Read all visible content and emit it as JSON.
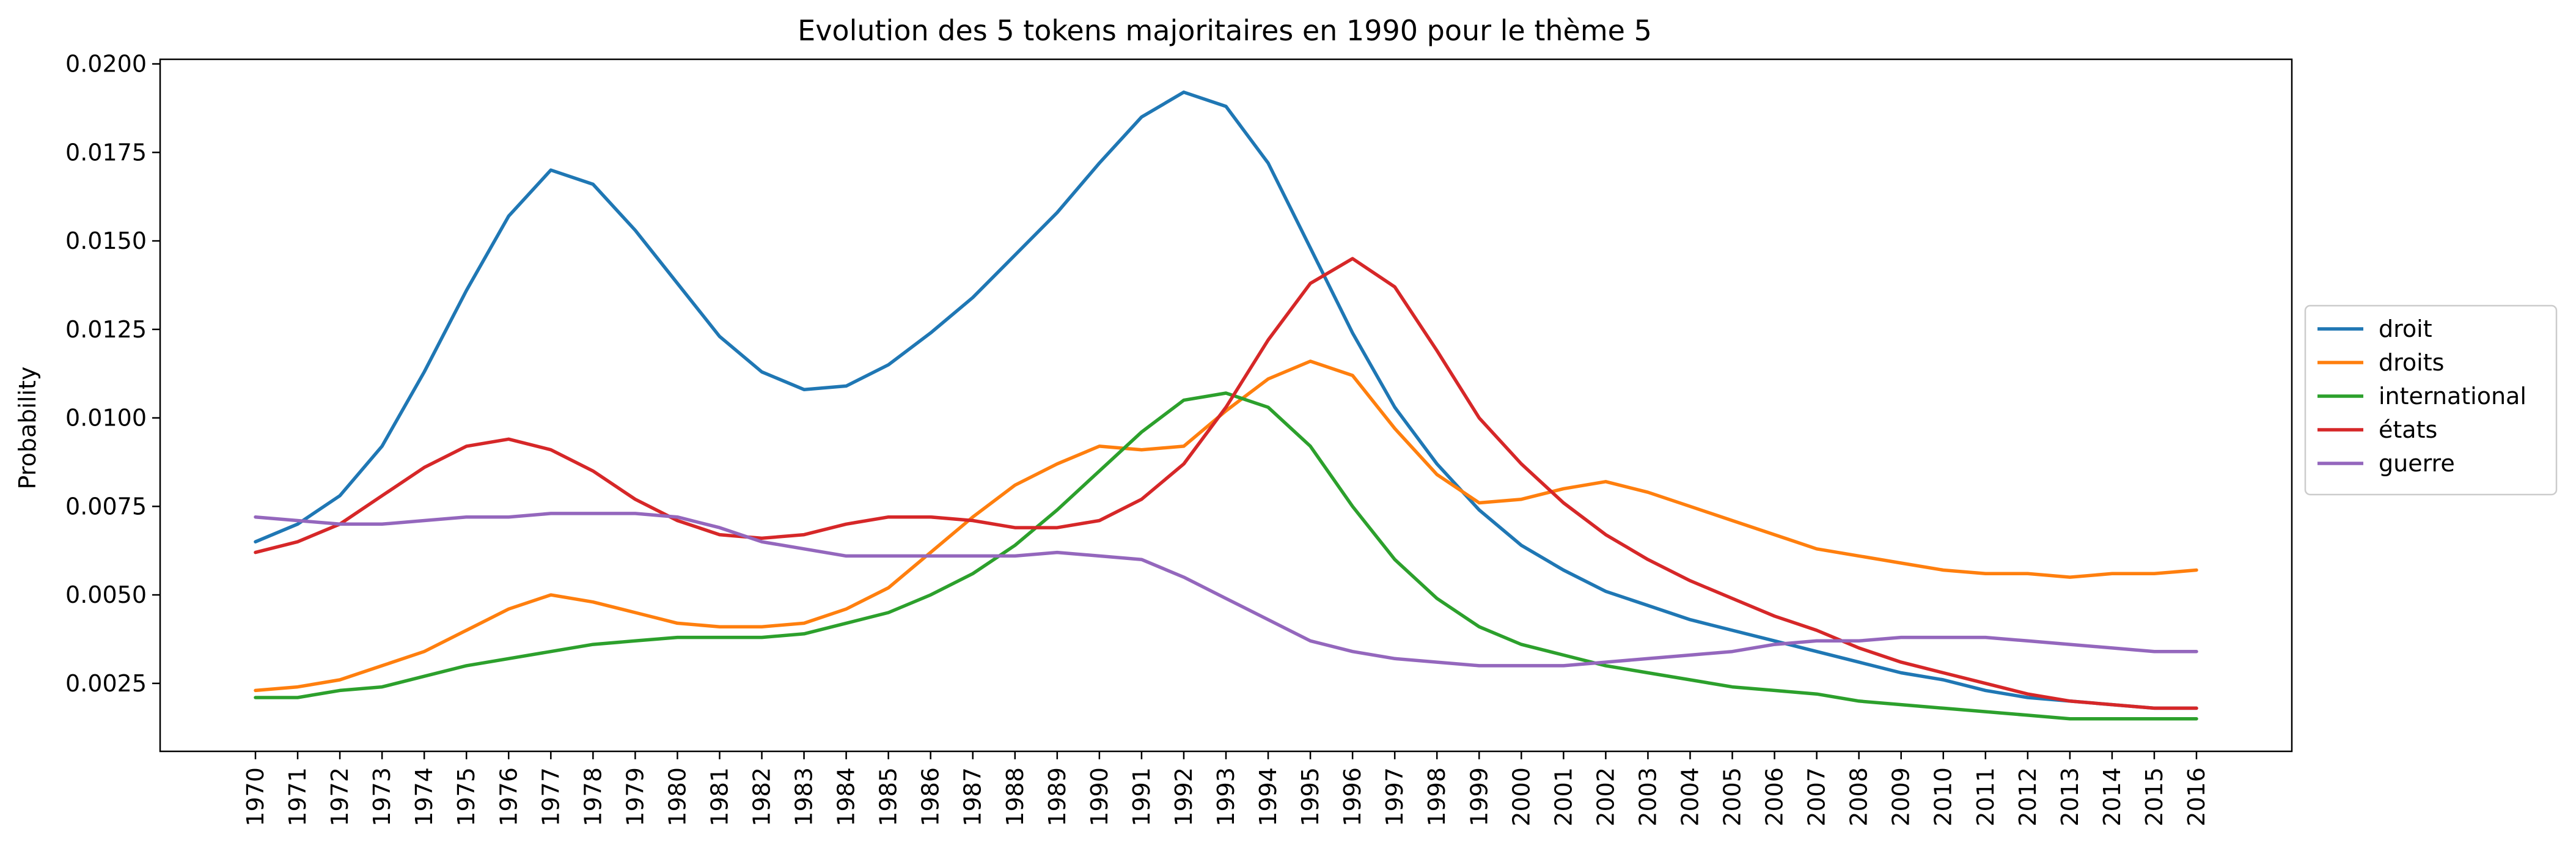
{
  "chart_data": {
    "type": "line",
    "title": "Evolution des 5 tokens majoritaires en 1990 pour le thème 5",
    "xlabel": "",
    "ylabel": "Probability",
    "x": [
      "1970",
      "1971",
      "1972",
      "1973",
      "1974",
      "1975",
      "1976",
      "1977",
      "1978",
      "1979",
      "1980",
      "1981",
      "1982",
      "1983",
      "1984",
      "1985",
      "1986",
      "1987",
      "1988",
      "1989",
      "1990",
      "1991",
      "1992",
      "1993",
      "1994",
      "1995",
      "1996",
      "1997",
      "1998",
      "1999",
      "2000",
      "2001",
      "2002",
      "2003",
      "2004",
      "2005",
      "2006",
      "2007",
      "2008",
      "2009",
      "2010",
      "2011",
      "2012",
      "2013",
      "2014",
      "2015",
      "2016"
    ],
    "yticks": [
      "0.0025",
      "0.0050",
      "0.0075",
      "0.0100",
      "0.0125",
      "0.0150",
      "0.0175",
      "0.0200"
    ],
    "ylim": [
      0.00058,
      0.02013
    ],
    "grid": false,
    "legend_position": "right-center",
    "series": [
      {
        "name": "droit",
        "color": "#1f77b4",
        "values": [
          0.0065,
          0.007,
          0.0078,
          0.0092,
          0.0113,
          0.0136,
          0.0157,
          0.017,
          0.0166,
          0.0153,
          0.0138,
          0.0123,
          0.0113,
          0.0108,
          0.0109,
          0.0115,
          0.0124,
          0.0134,
          0.0146,
          0.0158,
          0.0172,
          0.0185,
          0.0192,
          0.0188,
          0.0172,
          0.0148,
          0.0124,
          0.0103,
          0.0087,
          0.0074,
          0.0064,
          0.0057,
          0.0051,
          0.0047,
          0.0043,
          0.004,
          0.0037,
          0.0034,
          0.0031,
          0.0028,
          0.0026,
          0.0023,
          0.0021,
          0.002,
          0.0019,
          0.0018,
          0.0018
        ]
      },
      {
        "name": "droits",
        "color": "#ff7f0e",
        "values": [
          0.0023,
          0.0024,
          0.0026,
          0.003,
          0.0034,
          0.004,
          0.0046,
          0.005,
          0.0048,
          0.0045,
          0.0042,
          0.0041,
          0.0041,
          0.0042,
          0.0046,
          0.0052,
          0.0062,
          0.0072,
          0.0081,
          0.0087,
          0.0092,
          0.0091,
          0.0092,
          0.0102,
          0.0111,
          0.0116,
          0.0112,
          0.0097,
          0.0084,
          0.0076,
          0.0077,
          0.008,
          0.0082,
          0.0079,
          0.0075,
          0.0071,
          0.0067,
          0.0063,
          0.0061,
          0.0059,
          0.0057,
          0.0056,
          0.0056,
          0.0055,
          0.0056,
          0.0056,
          0.0057
        ]
      },
      {
        "name": "international",
        "color": "#2ca02c",
        "values": [
          0.0021,
          0.0021,
          0.0023,
          0.0024,
          0.0027,
          0.003,
          0.0032,
          0.0034,
          0.0036,
          0.0037,
          0.0038,
          0.0038,
          0.0038,
          0.0039,
          0.0042,
          0.0045,
          0.005,
          0.0056,
          0.0064,
          0.0074,
          0.0085,
          0.0096,
          0.0105,
          0.0107,
          0.0103,
          0.0092,
          0.0075,
          0.006,
          0.0049,
          0.0041,
          0.0036,
          0.0033,
          0.003,
          0.0028,
          0.0026,
          0.0024,
          0.0023,
          0.0022,
          0.002,
          0.0019,
          0.0018,
          0.0017,
          0.0016,
          0.0015,
          0.0015,
          0.0015,
          0.0015
        ]
      },
      {
        "name": "états",
        "color": "#d62728",
        "values": [
          0.0062,
          0.0065,
          0.007,
          0.0078,
          0.0086,
          0.0092,
          0.0094,
          0.0091,
          0.0085,
          0.0077,
          0.0071,
          0.0067,
          0.0066,
          0.0067,
          0.007,
          0.0072,
          0.0072,
          0.0071,
          0.0069,
          0.0069,
          0.0071,
          0.0077,
          0.0087,
          0.0103,
          0.0122,
          0.0138,
          0.0145,
          0.0137,
          0.0119,
          0.01,
          0.0087,
          0.0076,
          0.0067,
          0.006,
          0.0054,
          0.0049,
          0.0044,
          0.004,
          0.0035,
          0.0031,
          0.0028,
          0.0025,
          0.0022,
          0.002,
          0.0019,
          0.0018,
          0.0018
        ]
      },
      {
        "name": "guerre",
        "color": "#9467bd",
        "values": [
          0.0072,
          0.0071,
          0.007,
          0.007,
          0.0071,
          0.0072,
          0.0072,
          0.0073,
          0.0073,
          0.0073,
          0.0072,
          0.0069,
          0.0065,
          0.0063,
          0.0061,
          0.0061,
          0.0061,
          0.0061,
          0.0061,
          0.0062,
          0.0061,
          0.006,
          0.0055,
          0.0049,
          0.0043,
          0.0037,
          0.0034,
          0.0032,
          0.0031,
          0.003,
          0.003,
          0.003,
          0.0031,
          0.0032,
          0.0033,
          0.0034,
          0.0036,
          0.0037,
          0.0037,
          0.0038,
          0.0038,
          0.0038,
          0.0037,
          0.0036,
          0.0035,
          0.0034,
          0.0034
        ]
      }
    ]
  }
}
